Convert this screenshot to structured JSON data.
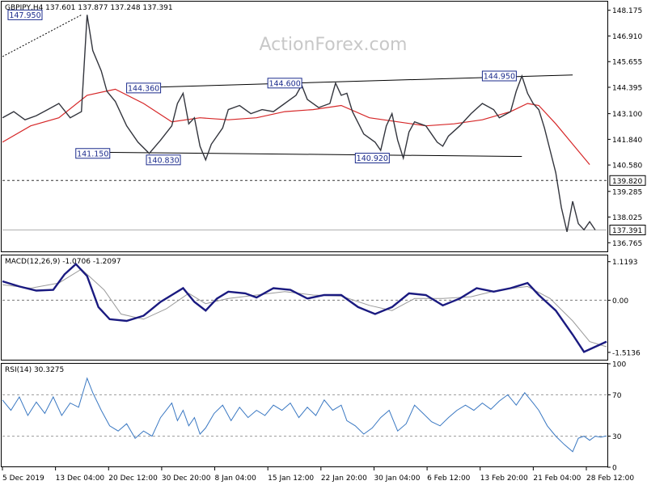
{
  "chart_data": [
    {
      "panel": "price",
      "type": "line",
      "symbol": "GBPJPY",
      "timeframe": "H4",
      "header": "GBPJPY,H4  137.601 137.877 137.248 137.391",
      "ohlc": {
        "open": 137.601,
        "high": 137.877,
        "low": 137.248,
        "close": 137.391
      },
      "watermark": "ActionForex.com",
      "ylim": [
        136.3,
        148.6
      ],
      "y_ticks": [
        "148.175",
        "146.910",
        "145.655",
        "144.395",
        "143.100",
        "141.840",
        "140.580",
        "139.285",
        "138.025",
        "136.765"
      ],
      "x_tick_labels": [
        "5 Dec 2019",
        "13 Dec 04:00",
        "20 Dec 12:00",
        "30 Dec 20:00",
        "8 Jan 04:00",
        "15 Jan 12:00",
        "22 Jan 20:00",
        "30 Jan 04:00",
        "6 Feb 12:00",
        "13 Feb 20:00",
        "21 Feb 04:00",
        "28 Feb 12:00"
      ],
      "price_path": [
        [
          0,
          142.9
        ],
        [
          4,
          143.2
        ],
        [
          8,
          142.8
        ],
        [
          12,
          143.0
        ],
        [
          16,
          143.3
        ],
        [
          20,
          143.6
        ],
        [
          24,
          142.9
        ],
        [
          28,
          143.2
        ],
        [
          30,
          147.95
        ],
        [
          32,
          146.2
        ],
        [
          35,
          145.2
        ],
        [
          37,
          144.2
        ],
        [
          40,
          143.7
        ],
        [
          44,
          142.5
        ],
        [
          48,
          141.7
        ],
        [
          52,
          141.15
        ],
        [
          56,
          141.8
        ],
        [
          60,
          142.5
        ],
        [
          62,
          143.6
        ],
        [
          64,
          144.1
        ],
        [
          66,
          142.6
        ],
        [
          68,
          142.9
        ],
        [
          70,
          141.5
        ],
        [
          72,
          140.83
        ],
        [
          74,
          141.6
        ],
        [
          78,
          142.4
        ],
        [
          80,
          143.3
        ],
        [
          84,
          143.5
        ],
        [
          88,
          143.1
        ],
        [
          92,
          143.3
        ],
        [
          96,
          143.2
        ],
        [
          100,
          143.6
        ],
        [
          104,
          144.0
        ],
        [
          106,
          144.5
        ],
        [
          108,
          143.8
        ],
        [
          112,
          143.4
        ],
        [
          116,
          143.6
        ],
        [
          118,
          144.6
        ],
        [
          120,
          144.0
        ],
        [
          122,
          144.1
        ],
        [
          124,
          143.2
        ],
        [
          128,
          142.1
        ],
        [
          132,
          141.7
        ],
        [
          134,
          141.3
        ],
        [
          136,
          142.5
        ],
        [
          138,
          143.1
        ],
        [
          140,
          141.8
        ],
        [
          142,
          140.92
        ],
        [
          144,
          142.2
        ],
        [
          146,
          142.7
        ],
        [
          150,
          142.5
        ],
        [
          152,
          142.1
        ],
        [
          154,
          141.7
        ],
        [
          156,
          141.5
        ],
        [
          158,
          142.0
        ],
        [
          162,
          142.5
        ],
        [
          166,
          143.1
        ],
        [
          170,
          143.6
        ],
        [
          174,
          143.3
        ],
        [
          176,
          142.9
        ],
        [
          180,
          143.2
        ],
        [
          182,
          144.2
        ],
        [
          184,
          144.95
        ],
        [
          186,
          144.1
        ],
        [
          188,
          143.6
        ],
        [
          190,
          143.3
        ],
        [
          192,
          142.4
        ],
        [
          194,
          141.3
        ],
        [
          196,
          140.2
        ],
        [
          198,
          138.5
        ],
        [
          200,
          137.3
        ],
        [
          202,
          138.8
        ],
        [
          204,
          137.7
        ],
        [
          206,
          137.4
        ],
        [
          208,
          137.8
        ],
        [
          210,
          137.391
        ]
      ],
      "sma_path": [
        [
          0,
          141.7
        ],
        [
          10,
          142.5
        ],
        [
          20,
          142.9
        ],
        [
          30,
          144.0
        ],
        [
          40,
          144.3
        ],
        [
          50,
          143.6
        ],
        [
          60,
          142.7
        ],
        [
          70,
          142.9
        ],
        [
          80,
          142.8
        ],
        [
          90,
          142.9
        ],
        [
          100,
          143.2
        ],
        [
          110,
          143.3
        ],
        [
          120,
          143.5
        ],
        [
          130,
          142.9
        ],
        [
          140,
          142.7
        ],
        [
          150,
          142.5
        ],
        [
          160,
          142.6
        ],
        [
          170,
          142.8
        ],
        [
          180,
          143.2
        ],
        [
          186,
          143.6
        ],
        [
          190,
          143.5
        ],
        [
          196,
          142.6
        ],
        [
          202,
          141.6
        ],
        [
          208,
          140.6
        ]
      ],
      "resistance_line": {
        "from": [
          44,
          144.36
        ],
        "to": [
          202,
          145.0
        ]
      },
      "support_line": {
        "from": [
          38,
          141.2
        ],
        "to": [
          184,
          141.0
        ]
      },
      "level_line": 139.82,
      "current_price": 137.391,
      "annotations": [
        {
          "text": "147.950",
          "x": 2,
          "y": 147.95
        },
        {
          "text": "144.360",
          "x": 44,
          "y": 144.36
        },
        {
          "text": "144.600",
          "x": 94,
          "y": 144.6
        },
        {
          "text": "144.950",
          "x": 170,
          "y": 144.95
        },
        {
          "text": "141.150",
          "x": 26,
          "y": 141.15
        },
        {
          "text": "140.830",
          "x": 51,
          "y": 140.83
        },
        {
          "text": "140.920",
          "x": 125,
          "y": 140.92
        }
      ],
      "badges": [
        {
          "text": "139.820",
          "value": 139.82
        },
        {
          "text": "137.391",
          "value": 137.391
        }
      ],
      "colors": {
        "price": "#33353d",
        "sma": "#d62728",
        "trend": "#000000",
        "annotation_border": "#1b2b8c",
        "annotation_text": "#1b2b8c"
      }
    },
    {
      "panel": "macd",
      "type": "line",
      "header": "MACD(12,26,9) -1.0706 -1.2097",
      "macd": -1.0706,
      "signal": -1.2097,
      "ylim": [
        -1.75,
        1.3
      ],
      "y_ticks": [
        "1.1193",
        "0.00",
        "-1.5136"
      ],
      "macd_path": [
        [
          0,
          0.55
        ],
        [
          6,
          0.4
        ],
        [
          12,
          0.28
        ],
        [
          18,
          0.3
        ],
        [
          22,
          0.75
        ],
        [
          26,
          1.05
        ],
        [
          30,
          0.7
        ],
        [
          34,
          -0.2
        ],
        [
          38,
          -0.55
        ],
        [
          44,
          -0.6
        ],
        [
          50,
          -0.45
        ],
        [
          56,
          -0.05
        ],
        [
          60,
          0.15
        ],
        [
          64,
          0.35
        ],
        [
          68,
          -0.05
        ],
        [
          72,
          -0.3
        ],
        [
          76,
          0.05
        ],
        [
          80,
          0.25
        ],
        [
          86,
          0.2
        ],
        [
          90,
          0.08
        ],
        [
          96,
          0.35
        ],
        [
          102,
          0.3
        ],
        [
          108,
          0.05
        ],
        [
          114,
          0.15
        ],
        [
          120,
          0.15
        ],
        [
          126,
          -0.2
        ],
        [
          132,
          -0.4
        ],
        [
          138,
          -0.2
        ],
        [
          144,
          0.2
        ],
        [
          150,
          0.15
        ],
        [
          156,
          -0.15
        ],
        [
          162,
          0.05
        ],
        [
          168,
          0.35
        ],
        [
          174,
          0.25
        ],
        [
          180,
          0.35
        ],
        [
          186,
          0.5
        ],
        [
          190,
          0.15
        ],
        [
          196,
          -0.3
        ],
        [
          202,
          -1.0
        ],
        [
          206,
          -1.5
        ],
        [
          210,
          -1.35
        ],
        [
          214,
          -1.2
        ]
      ],
      "signal_path": [
        [
          0,
          0.45
        ],
        [
          10,
          0.35
        ],
        [
          20,
          0.5
        ],
        [
          28,
          0.9
        ],
        [
          36,
          0.3
        ],
        [
          42,
          -0.4
        ],
        [
          50,
          -0.55
        ],
        [
          58,
          -0.25
        ],
        [
          66,
          0.2
        ],
        [
          72,
          -0.1
        ],
        [
          80,
          0.05
        ],
        [
          90,
          0.15
        ],
        [
          100,
          0.25
        ],
        [
          110,
          0.15
        ],
        [
          120,
          0.12
        ],
        [
          130,
          -0.15
        ],
        [
          138,
          -0.3
        ],
        [
          146,
          0.05
        ],
        [
          156,
          0.05
        ],
        [
          166,
          0.1
        ],
        [
          176,
          0.3
        ],
        [
          186,
          0.4
        ],
        [
          194,
          0.05
        ],
        [
          202,
          -0.6
        ],
        [
          208,
          -1.2
        ],
        [
          214,
          -1.35
        ]
      ],
      "colors": {
        "macd": "#1a1a80",
        "signal": "#9a9a9a"
      }
    },
    {
      "panel": "rsi",
      "type": "line",
      "header": "RSI(14) 30.3275",
      "rsi": 30.3275,
      "ylim": [
        0,
        100
      ],
      "y_ticks": [
        "100",
        "70",
        "30",
        "0"
      ],
      "levels": [
        70,
        30
      ],
      "rsi_path": [
        [
          0,
          65
        ],
        [
          3,
          55
        ],
        [
          6,
          68
        ],
        [
          9,
          50
        ],
        [
          12,
          63
        ],
        [
          15,
          52
        ],
        [
          18,
          68
        ],
        [
          21,
          50
        ],
        [
          24,
          62
        ],
        [
          27,
          58
        ],
        [
          30,
          86
        ],
        [
          32,
          72
        ],
        [
          35,
          55
        ],
        [
          38,
          40
        ],
        [
          41,
          35
        ],
        [
          44,
          42
        ],
        [
          47,
          28
        ],
        [
          50,
          35
        ],
        [
          53,
          30
        ],
        [
          56,
          48
        ],
        [
          58,
          55
        ],
        [
          60,
          62
        ],
        [
          62,
          45
        ],
        [
          64,
          55
        ],
        [
          66,
          40
        ],
        [
          68,
          48
        ],
        [
          70,
          32
        ],
        [
          72,
          38
        ],
        [
          75,
          52
        ],
        [
          78,
          60
        ],
        [
          81,
          45
        ],
        [
          84,
          58
        ],
        [
          87,
          48
        ],
        [
          90,
          55
        ],
        [
          93,
          50
        ],
        [
          96,
          60
        ],
        [
          99,
          55
        ],
        [
          102,
          62
        ],
        [
          105,
          48
        ],
        [
          108,
          58
        ],
        [
          111,
          50
        ],
        [
          114,
          65
        ],
        [
          117,
          55
        ],
        [
          120,
          60
        ],
        [
          122,
          45
        ],
        [
          125,
          40
        ],
        [
          128,
          32
        ],
        [
          131,
          38
        ],
        [
          134,
          48
        ],
        [
          137,
          55
        ],
        [
          140,
          35
        ],
        [
          143,
          42
        ],
        [
          146,
          60
        ],
        [
          149,
          52
        ],
        [
          152,
          44
        ],
        [
          155,
          40
        ],
        [
          158,
          48
        ],
        [
          161,
          55
        ],
        [
          164,
          60
        ],
        [
          167,
          55
        ],
        [
          170,
          62
        ],
        [
          173,
          56
        ],
        [
          176,
          64
        ],
        [
          179,
          70
        ],
        [
          182,
          60
        ],
        [
          185,
          72
        ],
        [
          188,
          62
        ],
        [
          190,
          55
        ],
        [
          193,
          40
        ],
        [
          196,
          30
        ],
        [
          199,
          22
        ],
        [
          202,
          15
        ],
        [
          204,
          28
        ],
        [
          206,
          30
        ],
        [
          208,
          26
        ],
        [
          210,
          30
        ],
        [
          212,
          29
        ],
        [
          214,
          30.3
        ]
      ],
      "colors": {
        "rsi": "#3a78c2"
      }
    }
  ]
}
